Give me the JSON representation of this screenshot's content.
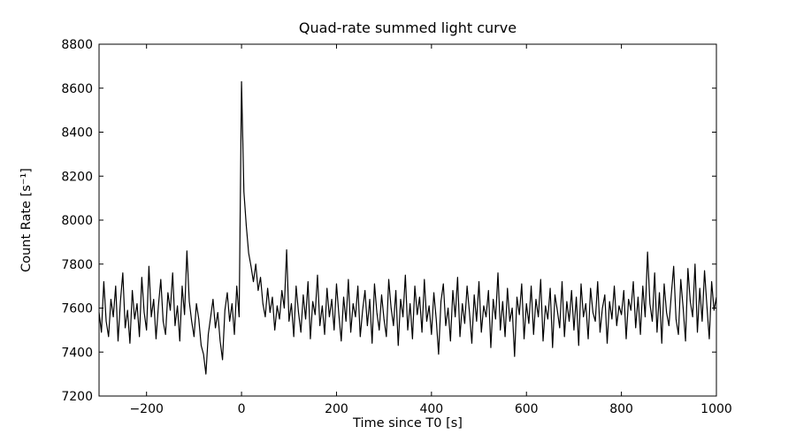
{
  "figure": {
    "background": "#ffffff",
    "frame_color": "#000000"
  },
  "chart_data": {
    "type": "line",
    "title": "Quad-rate summed light curve",
    "xlabel": "Time since T0 [s]",
    "ylabel": "Count Rate [s⁻¹]",
    "xlim": [
      -300,
      1000
    ],
    "ylim": [
      7200,
      8800
    ],
    "grid": false,
    "legend": "none",
    "line_color": "#000000",
    "line_width": 1.2,
    "tick_direction": "in",
    "xticks": {
      "values": [
        -200,
        0,
        200,
        400,
        600,
        800,
        1000
      ],
      "labels": [
        "−200",
        "0",
        "200",
        "400",
        "600",
        "800",
        "1000"
      ]
    },
    "yticks": {
      "values": [
        7200,
        7400,
        7600,
        7800,
        8000,
        8200,
        8400,
        8600,
        8800
      ],
      "labels": [
        "7200",
        "7400",
        "7600",
        "7800",
        "8000",
        "8200",
        "8400",
        "8600",
        "8800"
      ]
    },
    "series": [
      {
        "name": "quad-rate-summed-count-rate",
        "x_start": -300,
        "x_step": 5,
        "values": [
          7580,
          7490,
          7720,
          7540,
          7470,
          7640,
          7560,
          7700,
          7450,
          7630,
          7760,
          7510,
          7590,
          7440,
          7680,
          7550,
          7620,
          7470,
          7740,
          7580,
          7500,
          7790,
          7560,
          7640,
          7460,
          7610,
          7730,
          7540,
          7480,
          7670,
          7590,
          7760,
          7520,
          7610,
          7450,
          7700,
          7570,
          7860,
          7630,
          7540,
          7470,
          7620,
          7550,
          7430,
          7390,
          7300,
          7480,
          7560,
          7640,
          7510,
          7580,
          7450,
          7365,
          7590,
          7670,
          7540,
          7620,
          7480,
          7700,
          7560,
          8630,
          8130,
          7975,
          7850,
          7790,
          7720,
          7800,
          7680,
          7740,
          7620,
          7560,
          7690,
          7580,
          7650,
          7500,
          7610,
          7550,
          7680,
          7600,
          7865,
          7540,
          7620,
          7470,
          7700,
          7580,
          7490,
          7660,
          7550,
          7720,
          7460,
          7630,
          7570,
          7750,
          7520,
          7610,
          7480,
          7690,
          7560,
          7640,
          7500,
          7710,
          7570,
          7450,
          7650,
          7540,
          7730,
          7490,
          7620,
          7560,
          7700,
          7470,
          7590,
          7680,
          7520,
          7640,
          7440,
          7710,
          7580,
          7500,
          7660,
          7550,
          7470,
          7730,
          7600,
          7520,
          7680,
          7430,
          7640,
          7560,
          7750,
          7500,
          7620,
          7460,
          7700,
          7570,
          7650,
          7490,
          7730,
          7540,
          7610,
          7480,
          7670,
          7550,
          7390,
          7630,
          7710,
          7520,
          7600,
          7450,
          7680,
          7560,
          7740,
          7470,
          7620,
          7530,
          7700,
          7580,
          7440,
          7660,
          7540,
          7720,
          7490,
          7610,
          7560,
          7680,
          7420,
          7640,
          7550,
          7760,
          7500,
          7630,
          7470,
          7690,
          7540,
          7600,
          7380,
          7650,
          7570,
          7710,
          7460,
          7620,
          7530,
          7700,
          7480,
          7640,
          7560,
          7730,
          7450,
          7610,
          7550,
          7690,
          7420,
          7660,
          7590,
          7510,
          7720,
          7470,
          7630,
          7540,
          7680,
          7500,
          7650,
          7430,
          7710,
          7560,
          7620,
          7460,
          7690,
          7580,
          7540,
          7720,
          7490,
          7600,
          7660,
          7440,
          7630,
          7550,
          7700,
          7520,
          7610,
          7570,
          7680,
          7460,
          7640,
          7590,
          7720,
          7510,
          7650,
          7480,
          7700,
          7560,
          7855,
          7620,
          7540,
          7760,
          7490,
          7670,
          7440,
          7710,
          7580,
          7520,
          7660,
          7790,
          7550,
          7480,
          7730,
          7600,
          7450,
          7780,
          7630,
          7560,
          7800,
          7490,
          7690,
          7540,
          7770,
          7610,
          7460,
          7720,
          7590,
          7650
        ]
      }
    ]
  }
}
